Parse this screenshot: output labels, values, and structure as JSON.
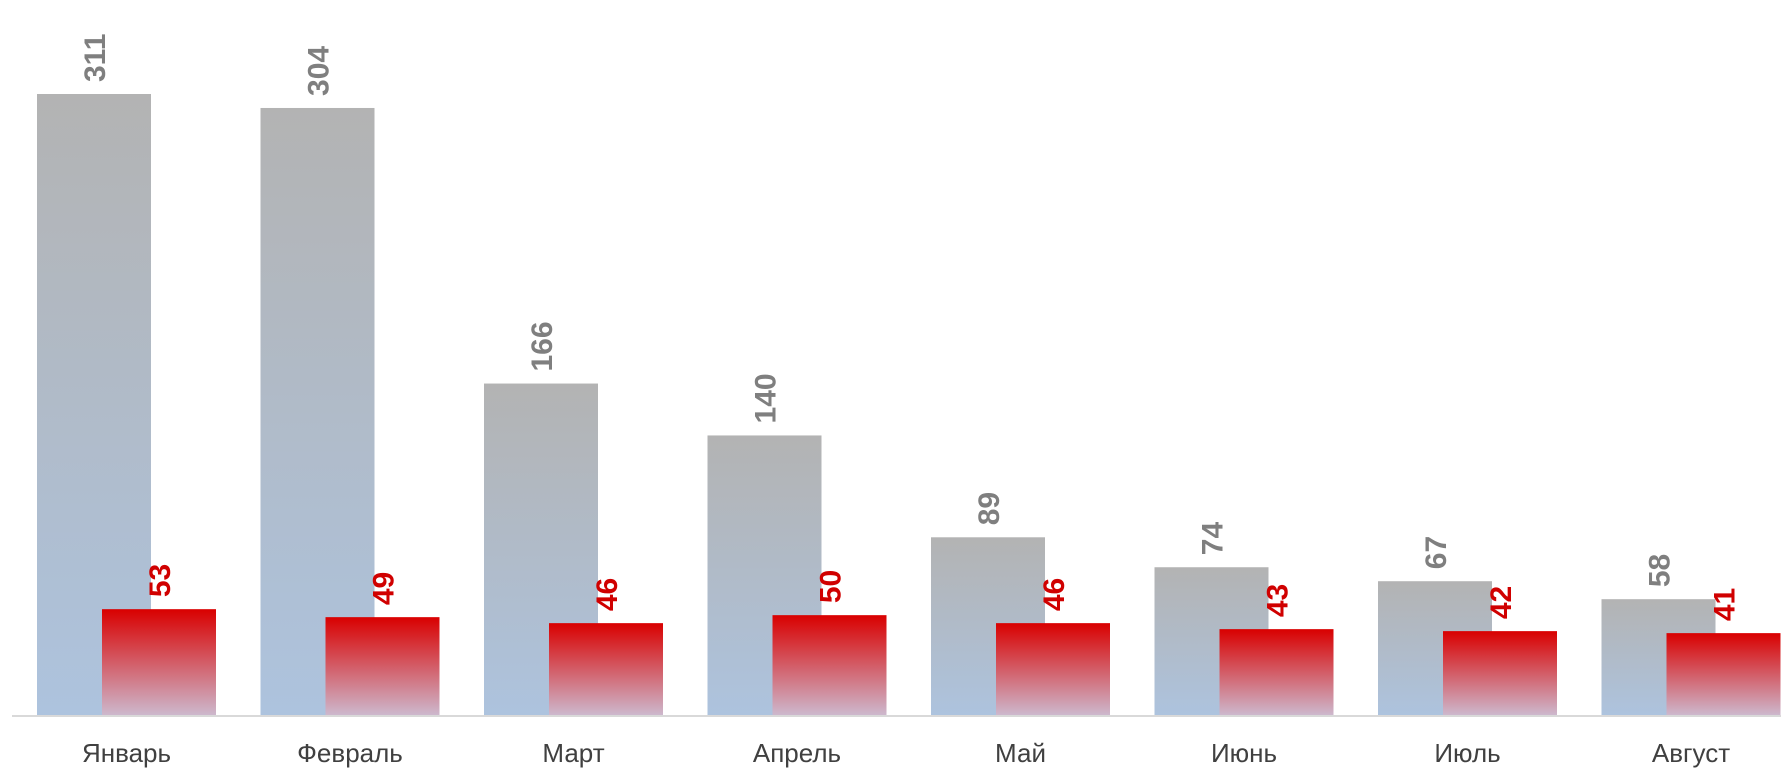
{
  "colors": {
    "series_1_label": "#7f7f7f",
    "series_2_label": "#d00000",
    "series_1_top": "#b3b3b3",
    "series_1_bottom": "#adc3de",
    "series_2_top": "#d90000",
    "series_2_bottom": "#cdb8cd",
    "axis": "#d9d9d9"
  },
  "chart_data": {
    "type": "bar",
    "categories": [
      "Январь",
      "Февраль",
      "Март",
      "Апрель",
      "Май",
      "Июнь",
      "Июль",
      "Август"
    ],
    "series": [
      {
        "values": [
          311,
          304,
          166,
          140,
          89,
          74,
          67,
          58
        ]
      },
      {
        "values": [
          53,
          49,
          46,
          50,
          46,
          43,
          42,
          41
        ]
      }
    ],
    "ylim": [
      0,
      311
    ],
    "grid": false,
    "legend": "none",
    "data_labels": true,
    "x_axis_clipped": true
  }
}
